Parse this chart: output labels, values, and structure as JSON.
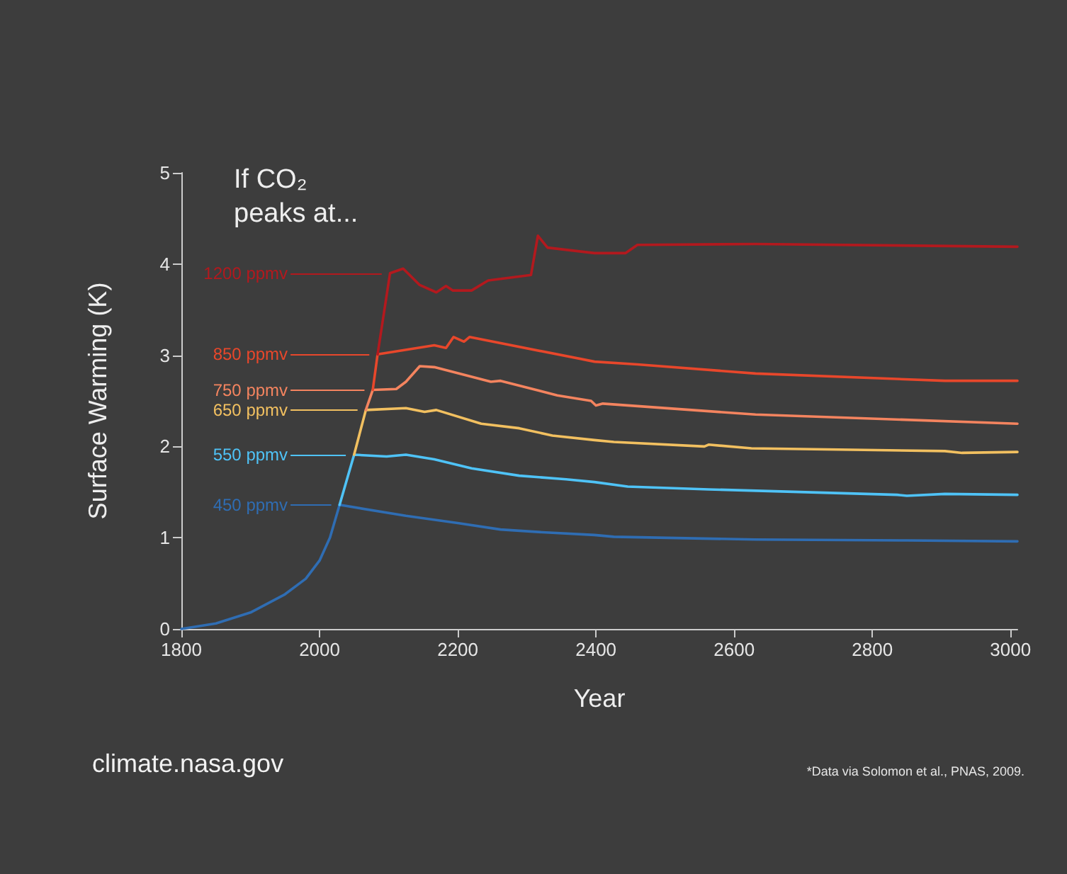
{
  "chart_data": {
    "type": "line",
    "title": "If CO₂ peaks at...",
    "xlabel": "Year",
    "ylabel": "Surface Warming (K)",
    "annotations": [
      "climate.nasa.gov",
      "*Data via Solomon et al., PNAS, 2009."
    ],
    "xlim": [
      1800,
      3010
    ],
    "xticks": [
      1800,
      2000,
      2200,
      2400,
      2600,
      2800,
      3000
    ],
    "ylim": [
      0,
      5
    ],
    "yticks": [
      0,
      1,
      2,
      3,
      4,
      5
    ],
    "grid": false,
    "legend": "left",
    "marker": "none",
    "line_style": "solid",
    "series": [
      {
        "color": "#2f6db3",
        "x": [
          1800,
          1850,
          1900,
          1950,
          1980,
          2000,
          2015,
          2029
        ],
        "values": [
          0,
          0.06,
          0.18,
          0.38,
          0.55,
          0.75,
          1.0,
          1.36
        ]
      },
      {
        "name": "450 ppmv",
        "color": "#2f6db3",
        "x": [
          2029,
          2125,
          2200,
          2262,
          2323,
          2398,
          2426,
          2631,
          2850,
          3010
        ],
        "values": [
          1.36,
          1.24,
          1.16,
          1.09,
          1.06,
          1.03,
          1.01,
          0.98,
          0.97,
          0.96
        ]
      },
      {
        "name": "550 ppmv",
        "color": "#4fc3f7",
        "x": [
          2029,
          2050,
          2097,
          2125,
          2166,
          2220,
          2289,
          2357,
          2398,
          2446,
          2563,
          2836,
          2850,
          2905,
          3010
        ],
        "values": [
          1.36,
          1.91,
          1.89,
          1.91,
          1.86,
          1.76,
          1.68,
          1.64,
          1.61,
          1.56,
          1.53,
          1.47,
          1.46,
          1.48,
          1.47
        ]
      },
      {
        "name": "650 ppmv",
        "color": "#f2c060",
        "x": [
          2050,
          2067,
          2125,
          2152,
          2169,
          2234,
          2289,
          2337,
          2398,
          2426,
          2557,
          2563,
          2625,
          2905,
          2930,
          3010
        ],
        "values": [
          1.91,
          2.4,
          2.42,
          2.38,
          2.4,
          2.25,
          2.2,
          2.12,
          2.07,
          2.05,
          2.0,
          2.02,
          1.98,
          1.95,
          1.93,
          1.94
        ]
      },
      {
        "name": "750 ppmv",
        "color": "#f4845f",
        "x": [
          2067,
          2077,
          2111,
          2125,
          2145,
          2166,
          2248,
          2262,
          2344,
          2393,
          2400,
          2410,
          2631,
          3010
        ],
        "values": [
          2.4,
          2.62,
          2.63,
          2.71,
          2.88,
          2.87,
          2.71,
          2.72,
          2.56,
          2.5,
          2.45,
          2.47,
          2.35,
          2.25
        ]
      },
      {
        "name": "850 ppmv",
        "color": "#e8472b",
        "x": [
          2077,
          2084,
          2166,
          2183,
          2194,
          2209,
          2217,
          2398,
          2460,
          2631,
          2905,
          3010
        ],
        "values": [
          2.62,
          3.01,
          3.11,
          3.08,
          3.2,
          3.15,
          3.2,
          2.93,
          2.9,
          2.8,
          2.72,
          2.72
        ]
      },
      {
        "name": "1200 ppmv",
        "color": "#b3191e",
        "x": [
          2084,
          2102,
          2121,
          2145,
          2169,
          2183,
          2193,
          2220,
          2244,
          2306,
          2316,
          2330,
          2398,
          2443,
          2460,
          2631,
          3010
        ],
        "values": [
          3.01,
          3.9,
          3.95,
          3.77,
          3.69,
          3.76,
          3.71,
          3.71,
          3.82,
          3.88,
          4.31,
          4.18,
          4.12,
          4.12,
          4.21,
          4.22,
          4.19
        ]
      }
    ]
  }
}
